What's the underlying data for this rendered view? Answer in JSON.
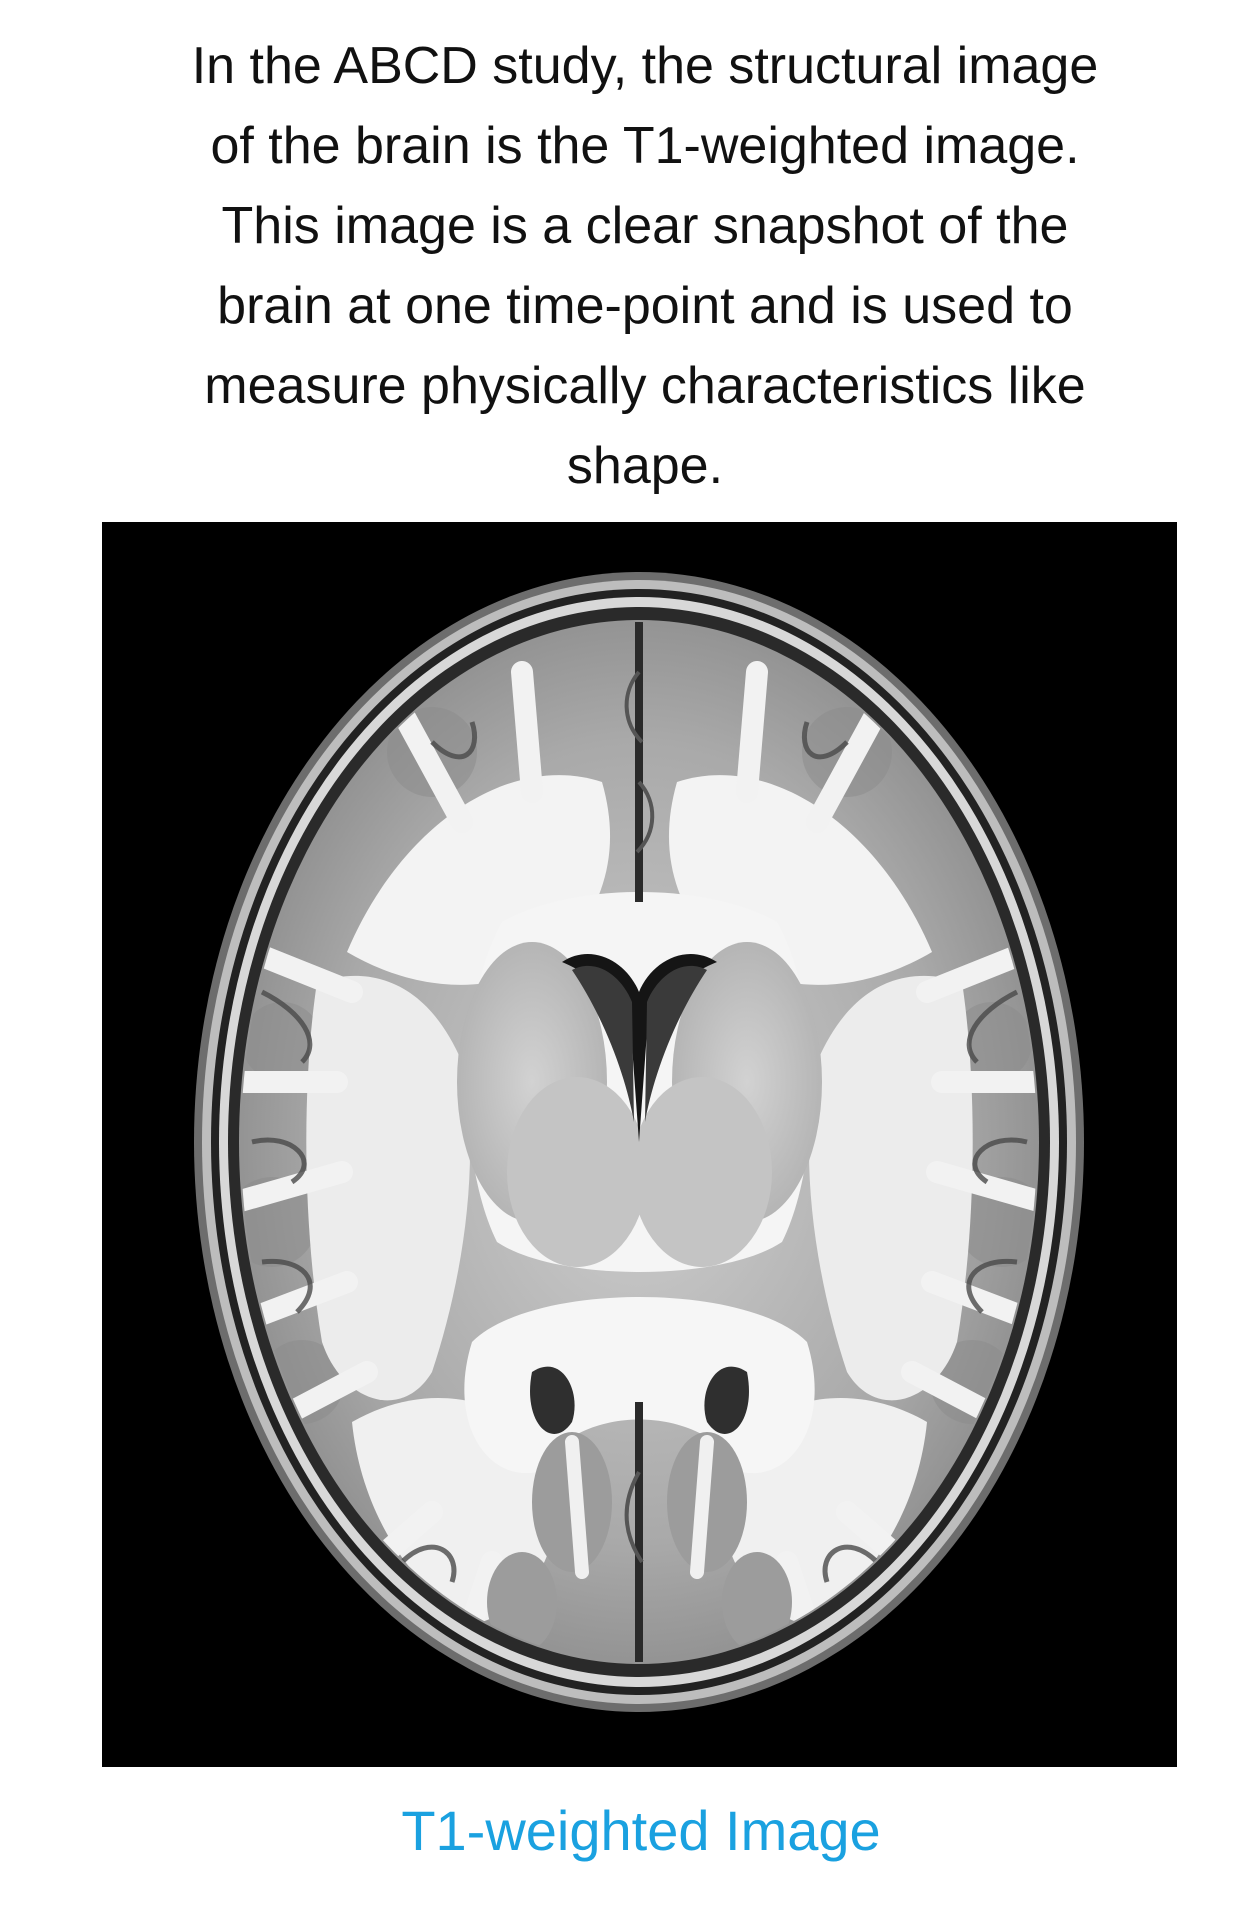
{
  "intro": {
    "lines": [
      "In the ABCD study, the structural image",
      "of the brain is the T1-weighted image.",
      "This image is a clear snapshot of the",
      "brain at one time-point and is used to",
      "measure physically characteristics like",
      "shape."
    ]
  },
  "figure": {
    "icon": "brain-mri-axial-slice",
    "caption": "T1-weighted Image"
  },
  "colors": {
    "text": "#111111",
    "caption": "#1aa1e0",
    "image_background": "#000000"
  }
}
